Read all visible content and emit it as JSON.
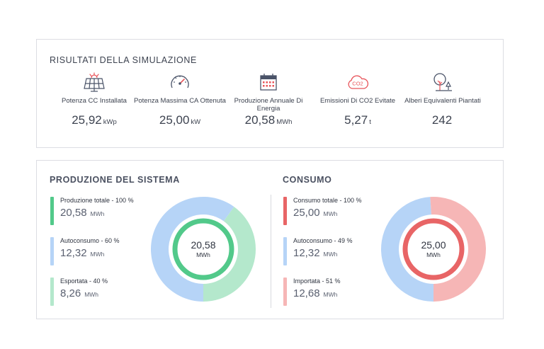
{
  "results": {
    "title": "RISULTATI DELLA SIMULAZIONE",
    "kpis": [
      {
        "icon": "solar-panel-icon",
        "label": "Potenza CC Installata",
        "value": "25,92",
        "unit": "kWp"
      },
      {
        "icon": "gauge-icon",
        "label": "Potenza Massima CA Ottenuta",
        "value": "25,00",
        "unit": "kW"
      },
      {
        "icon": "calendar-icon",
        "label": "Produzione Annuale Di Energia",
        "value": "20,58",
        "unit": "MWh"
      },
      {
        "icon": "co2-cloud-icon",
        "label": "Emissioni Di CO2 Evitate",
        "value": "5,27",
        "unit": "t"
      },
      {
        "icon": "trees-icon",
        "label": "Alberi Equivalenti Piantati",
        "value": "242",
        "unit": ""
      }
    ]
  },
  "production": {
    "title": "PRODUZIONE DEL SISTEMA",
    "items": [
      {
        "label": "Produzione totale - 100 %",
        "value": "20,58",
        "unit": "MWh",
        "color": "#52c98a"
      },
      {
        "label": "Autoconsumo - 60 %",
        "value": "12,32",
        "unit": "MWh",
        "color": "#b6d4f7"
      },
      {
        "label": "Esportata - 40 %",
        "value": "8,26",
        "unit": "MWh",
        "color": "#b4e8cc"
      }
    ],
    "donut": {
      "value": "20,58",
      "unit": "MWh",
      "shares": [
        60,
        40
      ],
      "ring_color": "#52c98a",
      "colors": [
        "#b6d4f7",
        "#b4e8cc"
      ]
    }
  },
  "consumption": {
    "title": "CONSUMO",
    "items": [
      {
        "label": "Consumo totale - 100 %",
        "value": "25,00",
        "unit": "MWh",
        "color": "#e86566"
      },
      {
        "label": "Autoconsumo - 49 %",
        "value": "12,32",
        "unit": "MWh",
        "color": "#b6d4f7"
      },
      {
        "label": "Importata - 51 %",
        "value": "12,68",
        "unit": "MWh",
        "color": "#f6b6b6"
      }
    ],
    "donut": {
      "value": "25,00",
      "unit": "MWh",
      "shares": [
        49,
        51
      ],
      "ring_color": "#e86566",
      "colors": [
        "#b6d4f7",
        "#f6b6b6"
      ]
    }
  },
  "colors": {
    "accent_icon": "#e8545a",
    "icon_stroke": "#4a5368"
  }
}
